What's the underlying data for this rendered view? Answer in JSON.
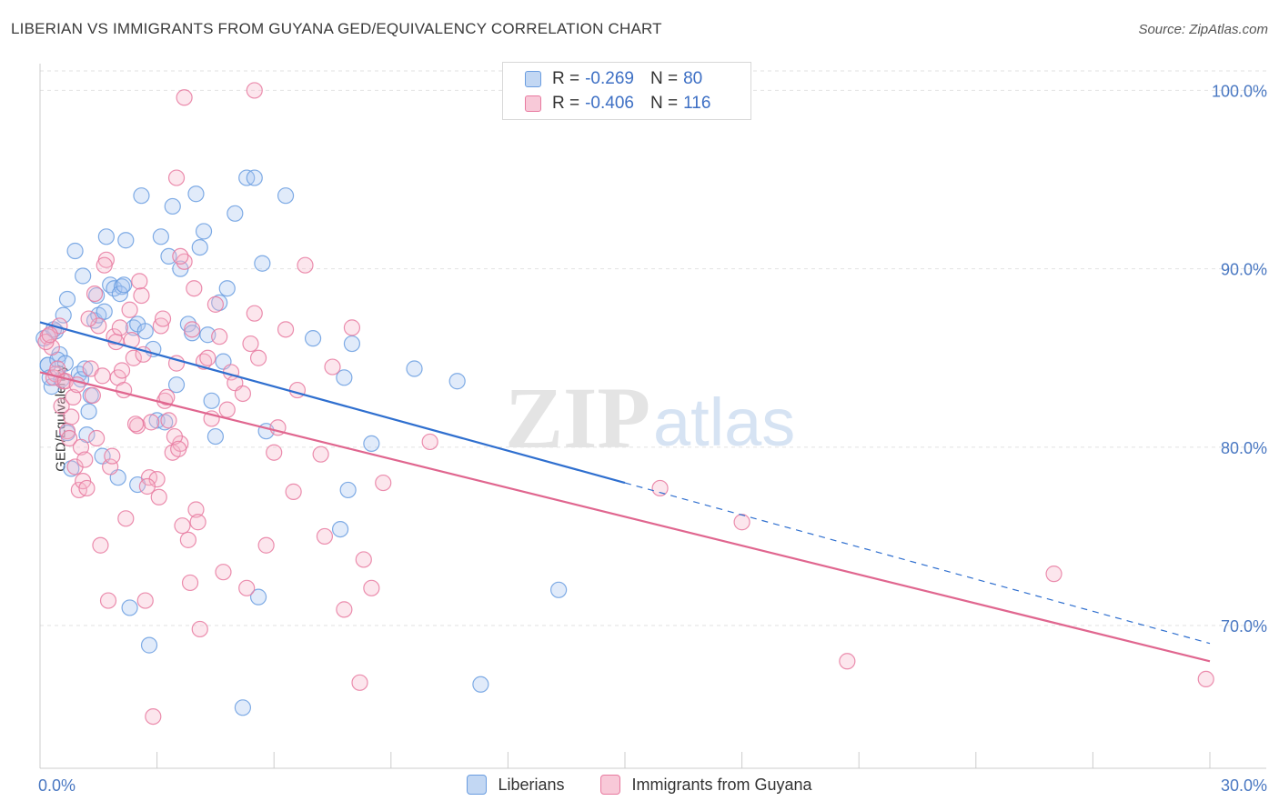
{
  "title": "LIBERIAN VS IMMIGRANTS FROM GUYANA GED/EQUIVALENCY CORRELATION CHART",
  "source": "Source: ZipAtlas.com",
  "watermark_a": "ZIP",
  "watermark_b": "atlas",
  "legend": {
    "r_label": "R =",
    "n_label": "N =",
    "rows": [
      {
        "r": "-0.269",
        "n": "80"
      },
      {
        "r": "-0.406",
        "n": "116"
      }
    ]
  },
  "chart_data": {
    "type": "scatter",
    "ylabel": "GED/Equivalency",
    "xlim": [
      0,
      30
    ],
    "ylim": [
      62,
      101.5
    ],
    "x_tick_labels": [
      "0.0%",
      "30.0%"
    ],
    "y_ticks": [
      {
        "value": 100,
        "label": "100.0%"
      },
      {
        "value": 90,
        "label": "90.0%"
      },
      {
        "value": 80,
        "label": "80.0%"
      },
      {
        "value": 70,
        "label": "70.0%"
      }
    ],
    "grid": true,
    "legend_position": "top-center",
    "series": [
      {
        "name": "Liberians",
        "color": "#6a9de0",
        "fill": "#a9c6f0",
        "trend": {
          "x0": 0,
          "y0": 87.0,
          "x1": 15.0,
          "y1": 78.0,
          "dash_to_x": 30,
          "dash_to_y": 69.0
        },
        "points": [
          [
            0.2,
            84.6
          ],
          [
            0.3,
            83.4
          ],
          [
            0.4,
            86.5
          ],
          [
            0.5,
            85.2
          ],
          [
            0.6,
            87.4
          ],
          [
            0.7,
            88.3
          ],
          [
            0.7,
            80.8
          ],
          [
            0.8,
            78.8
          ],
          [
            0.9,
            91.0
          ],
          [
            1.0,
            84.1
          ],
          [
            1.1,
            89.6
          ],
          [
            1.2,
            80.7
          ],
          [
            1.3,
            82.9
          ],
          [
            1.4,
            87.1
          ],
          [
            1.5,
            87.4
          ],
          [
            1.6,
            79.5
          ],
          [
            1.7,
            91.8
          ],
          [
            1.8,
            89.1
          ],
          [
            1.9,
            88.9
          ],
          [
            2.0,
            78.3
          ],
          [
            2.1,
            89.0
          ],
          [
            2.2,
            91.6
          ],
          [
            2.3,
            71.0
          ],
          [
            2.4,
            86.7
          ],
          [
            2.5,
            86.9
          ],
          [
            2.5,
            77.9
          ],
          [
            2.6,
            94.1
          ],
          [
            2.7,
            86.5
          ],
          [
            2.8,
            68.9
          ],
          [
            2.9,
            85.5
          ],
          [
            3.0,
            81.5
          ],
          [
            3.1,
            91.8
          ],
          [
            3.2,
            81.4
          ],
          [
            3.3,
            90.7
          ],
          [
            3.4,
            93.5
          ],
          [
            3.5,
            83.5
          ],
          [
            3.6,
            90.0
          ],
          [
            3.8,
            86.9
          ],
          [
            3.9,
            86.4
          ],
          [
            4.0,
            94.2
          ],
          [
            4.1,
            91.2
          ],
          [
            4.2,
            92.1
          ],
          [
            4.3,
            86.3
          ],
          [
            4.4,
            82.6
          ],
          [
            4.5,
            80.6
          ],
          [
            4.6,
            88.1
          ],
          [
            4.7,
            84.8
          ],
          [
            4.8,
            88.9
          ],
          [
            5.0,
            93.1
          ],
          [
            5.3,
            95.1
          ],
          [
            5.5,
            95.1
          ],
          [
            5.2,
            65.4
          ],
          [
            5.6,
            71.6
          ],
          [
            5.7,
            90.3
          ],
          [
            5.8,
            80.9
          ],
          [
            6.3,
            94.1
          ],
          [
            7.0,
            86.1
          ],
          [
            7.7,
            75.4
          ],
          [
            7.8,
            83.9
          ],
          [
            7.9,
            77.6
          ],
          [
            8.0,
            85.8
          ],
          [
            8.5,
            80.2
          ],
          [
            9.6,
            84.4
          ],
          [
            10.7,
            83.7
          ],
          [
            11.3,
            66.7
          ],
          [
            13.3,
            72.0
          ],
          [
            0.1,
            86.1
          ],
          [
            0.2,
            84.6
          ],
          [
            0.25,
            83.9
          ],
          [
            0.35,
            86.6
          ],
          [
            0.45,
            84.9
          ],
          [
            0.55,
            83.8
          ],
          [
            0.65,
            84.7
          ],
          [
            1.05,
            83.8
          ],
          [
            1.15,
            84.4
          ],
          [
            1.25,
            82.0
          ],
          [
            1.45,
            88.5
          ],
          [
            1.65,
            87.6
          ],
          [
            2.05,
            88.6
          ],
          [
            2.15,
            89.1
          ]
        ]
      },
      {
        "name": "Immigrants from Guyana",
        "color": "#e87aa0",
        "fill": "#f5b8cc",
        "trend": {
          "x0": 0,
          "y0": 84.2,
          "x1": 30,
          "y1": 68.0
        },
        "points": [
          [
            0.2,
            86.2
          ],
          [
            0.3,
            85.6
          ],
          [
            0.4,
            84.1
          ],
          [
            0.5,
            86.8
          ],
          [
            0.6,
            83.7
          ],
          [
            0.7,
            80.9
          ],
          [
            0.8,
            81.7
          ],
          [
            0.9,
            78.9
          ],
          [
            1.0,
            77.6
          ],
          [
            1.1,
            78.1
          ],
          [
            1.2,
            77.7
          ],
          [
            1.3,
            84.4
          ],
          [
            1.4,
            88.6
          ],
          [
            1.5,
            86.8
          ],
          [
            1.6,
            84.0
          ],
          [
            1.7,
            90.5
          ],
          [
            1.8,
            78.9
          ],
          [
            1.9,
            86.2
          ],
          [
            2.0,
            83.9
          ],
          [
            2.1,
            84.3
          ],
          [
            2.2,
            76.0
          ],
          [
            2.3,
            87.7
          ],
          [
            2.4,
            85.0
          ],
          [
            2.5,
            81.2
          ],
          [
            2.6,
            88.5
          ],
          [
            2.7,
            71.4
          ],
          [
            2.8,
            78.3
          ],
          [
            2.9,
            64.9
          ],
          [
            3.0,
            78.2
          ],
          [
            3.1,
            86.8
          ],
          [
            3.2,
            82.6
          ],
          [
            3.3,
            81.5
          ],
          [
            3.4,
            79.7
          ],
          [
            3.5,
            84.7
          ],
          [
            3.6,
            80.2
          ],
          [
            3.7,
            90.4
          ],
          [
            3.8,
            74.8
          ],
          [
            3.9,
            86.6
          ],
          [
            4.0,
            76.5
          ],
          [
            4.1,
            69.8
          ],
          [
            4.2,
            84.8
          ],
          [
            4.3,
            85.0
          ],
          [
            4.4,
            81.6
          ],
          [
            4.5,
            88.0
          ],
          [
            4.6,
            86.2
          ],
          [
            4.7,
            73.0
          ],
          [
            4.8,
            82.1
          ],
          [
            4.9,
            84.2
          ],
          [
            5.0,
            83.6
          ],
          [
            5.2,
            83.0
          ],
          [
            5.3,
            72.1
          ],
          [
            5.4,
            85.8
          ],
          [
            5.5,
            87.5
          ],
          [
            5.6,
            85.0
          ],
          [
            5.8,
            74.5
          ],
          [
            6.0,
            79.7
          ],
          [
            6.1,
            81.1
          ],
          [
            6.3,
            86.6
          ],
          [
            6.5,
            77.5
          ],
          [
            6.6,
            83.2
          ],
          [
            6.8,
            90.2
          ],
          [
            7.2,
            79.6
          ],
          [
            7.3,
            75.0
          ],
          [
            7.5,
            84.5
          ],
          [
            7.8,
            70.9
          ],
          [
            8.0,
            86.7
          ],
          [
            8.2,
            66.8
          ],
          [
            8.3,
            73.7
          ],
          [
            8.5,
            72.1
          ],
          [
            8.8,
            78.0
          ],
          [
            10.0,
            80.3
          ],
          [
            15.9,
            77.7
          ],
          [
            18.0,
            75.8
          ],
          [
            20.7,
            68.0
          ],
          [
            26.0,
            72.9
          ],
          [
            29.9,
            67.0
          ],
          [
            3.5,
            95.1
          ],
          [
            3.6,
            90.7
          ],
          [
            3.7,
            99.6
          ],
          [
            5.5,
            100.0
          ],
          [
            0.15,
            85.9
          ],
          [
            0.25,
            86.3
          ],
          [
            0.35,
            83.9
          ],
          [
            0.45,
            84.4
          ],
          [
            0.55,
            82.3
          ],
          [
            0.65,
            83.7
          ],
          [
            0.75,
            80.5
          ],
          [
            0.85,
            82.8
          ],
          [
            0.95,
            83.5
          ],
          [
            1.05,
            80.0
          ],
          [
            1.15,
            79.3
          ],
          [
            1.25,
            87.2
          ],
          [
            1.35,
            82.9
          ],
          [
            1.45,
            80.5
          ],
          [
            1.55,
            74.5
          ],
          [
            1.65,
            90.2
          ],
          [
            1.75,
            71.4
          ],
          [
            1.85,
            79.5
          ],
          [
            1.95,
            85.9
          ],
          [
            2.05,
            86.7
          ],
          [
            2.15,
            83.2
          ],
          [
            2.35,
            86.0
          ],
          [
            2.45,
            81.3
          ],
          [
            2.55,
            89.3
          ],
          [
            2.65,
            85.2
          ],
          [
            2.75,
            77.8
          ],
          [
            2.85,
            81.4
          ],
          [
            3.05,
            77.2
          ],
          [
            3.15,
            87.2
          ],
          [
            3.25,
            82.8
          ],
          [
            3.45,
            80.6
          ],
          [
            3.55,
            79.9
          ],
          [
            3.65,
            75.6
          ],
          [
            3.85,
            72.4
          ],
          [
            3.95,
            88.9
          ],
          [
            4.05,
            75.8
          ]
        ]
      }
    ]
  }
}
